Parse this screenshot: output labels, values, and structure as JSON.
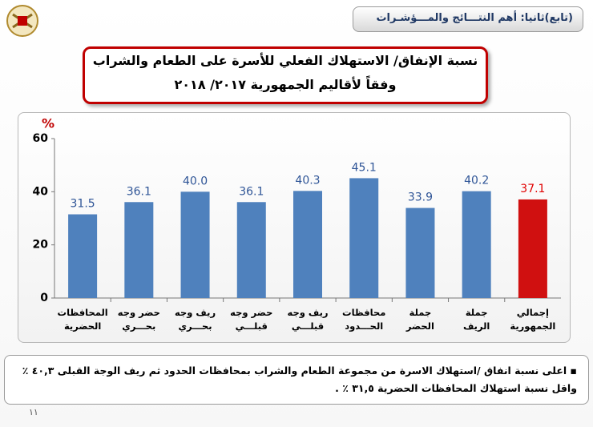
{
  "header": {
    "title": "(تابع)ثانيا: أهم النتـــائج والمـــؤشـرات"
  },
  "chart_data": {
    "type": "bar",
    "title": "نسبة الإنفاق/ الاستهلاك الفعلي للأسرة على الطعام والشراب",
    "subtitle": "وفقاً لأقاليم الجمهورية ٢٠١٧/ ٢٠١٨",
    "y_label": "%",
    "categories": [
      "المحافظات الحضرية",
      "حضر وجه بحـــري",
      "ريف وجه بحـــري",
      "حضر وجه قبلـــي",
      "ريف وجه قبلـــي",
      "محافظات الحـــدود",
      "جملة الحضر",
      "جملة الريف",
      "إجمالي الجمهورية"
    ],
    "values": [
      31.5,
      36.1,
      40.0,
      36.1,
      40.3,
      45.1,
      33.9,
      40.2,
      37.1
    ],
    "value_labels": [
      "31.5",
      "36.1",
      "40.0",
      "36.1",
      "40.3",
      "45.1",
      "33.9",
      "40.2",
      "37.1"
    ],
    "colors": [
      "#4f81bd",
      "#4f81bd",
      "#4f81bd",
      "#4f81bd",
      "#4f81bd",
      "#4f81bd",
      "#4f81bd",
      "#4f81bd",
      "#d01010"
    ],
    "label_colors": [
      "#2f5597",
      "#2f5597",
      "#2f5597",
      "#2f5597",
      "#2f5597",
      "#2f5597",
      "#2f5597",
      "#2f5597",
      "#e00000"
    ],
    "ylim": [
      0,
      60
    ],
    "yticks": [
      0,
      20,
      40,
      60
    ],
    "grid": false
  },
  "note": {
    "lines": [
      "اعلى نسبة انفاق /استهلاك الاسرة من مجموعة الطعام والشراب بمحافظات الحدود ثم ريف الوجة القبلى ٤٠,٣ ٪",
      "واقل نسبة استهلاك المحافظات الحضرية ٣١,٥ ٪ ."
    ]
  },
  "page_number": "١١"
}
